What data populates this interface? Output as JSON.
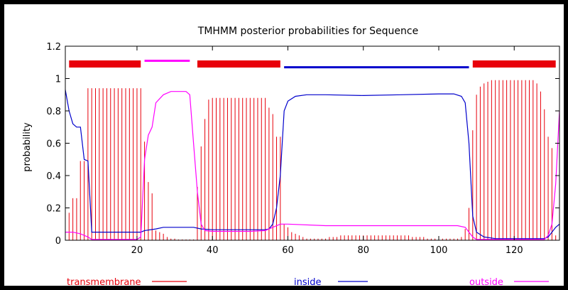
{
  "chart_data": {
    "type": "line",
    "title": "TMHMM posterior probabilities for Sequence",
    "xlabel": "",
    "ylabel": "probability",
    "xlim": [
      1,
      132
    ],
    "ylim": [
      0,
      1.2
    ],
    "x_ticks": [
      {
        "value": 20,
        "label": "20"
      },
      {
        "value": 40,
        "label": "40"
      },
      {
        "value": 60,
        "label": "60"
      },
      {
        "value": 80,
        "label": "80"
      },
      {
        "value": 100,
        "label": "100"
      },
      {
        "value": 120,
        "label": "120"
      }
    ],
    "y_ticks": [
      {
        "value": 0,
        "label": "0"
      },
      {
        "value": 0.2,
        "label": "0.2"
      },
      {
        "value": 0.4,
        "label": "0.4"
      },
      {
        "value": 0.6,
        "label": "0.6"
      },
      {
        "value": 0.8,
        "label": "0.8"
      },
      {
        "value": 1,
        "label": "1"
      },
      {
        "value": 1.2,
        "label": "1.2"
      }
    ],
    "topology": [
      {
        "type": "transmembrane",
        "start": 2,
        "end": 21,
        "level": 1.09
      },
      {
        "type": "outside",
        "start": 22,
        "end": 34,
        "level": 1.11
      },
      {
        "type": "transmembrane",
        "start": 36,
        "end": 58,
        "level": 1.09
      },
      {
        "type": "inside",
        "start": 59,
        "end": 108,
        "level": 1.07
      },
      {
        "type": "transmembrane",
        "start": 109,
        "end": 131,
        "level": 1.09
      }
    ],
    "series": [
      {
        "name": "transmembrane",
        "color": "#e8000b",
        "style": "impulses",
        "points": [
          [
            1,
            0.05
          ],
          [
            2,
            0.17
          ],
          [
            3,
            0.26
          ],
          [
            4,
            0.26
          ],
          [
            5,
            0.49
          ],
          [
            6,
            0.49
          ],
          [
            7,
            0.94
          ],
          [
            8,
            0.94
          ],
          [
            9,
            0.94
          ],
          [
            10,
            0.94
          ],
          [
            11,
            0.94
          ],
          [
            12,
            0.94
          ],
          [
            13,
            0.94
          ],
          [
            14,
            0.94
          ],
          [
            15,
            0.94
          ],
          [
            16,
            0.94
          ],
          [
            17,
            0.94
          ],
          [
            18,
            0.94
          ],
          [
            19,
            0.94
          ],
          [
            20,
            0.94
          ],
          [
            21,
            0.94
          ],
          [
            22,
            0.61
          ],
          [
            23,
            0.36
          ],
          [
            24,
            0.29
          ],
          [
            25,
            0.06
          ],
          [
            26,
            0.05
          ],
          [
            27,
            0.04
          ],
          [
            28,
            0.02
          ],
          [
            29,
            0.01
          ],
          [
            30,
            0.01
          ],
          [
            31,
            0.005
          ],
          [
            32,
            0.005
          ],
          [
            33,
            0.005
          ],
          [
            34,
            0.005
          ],
          [
            35,
            0.005
          ],
          [
            36,
            0.33
          ],
          [
            37,
            0.58
          ],
          [
            38,
            0.75
          ],
          [
            39,
            0.87
          ],
          [
            40,
            0.88
          ],
          [
            41,
            0.88
          ],
          [
            42,
            0.88
          ],
          [
            43,
            0.88
          ],
          [
            44,
            0.88
          ],
          [
            45,
            0.88
          ],
          [
            46,
            0.88
          ],
          [
            47,
            0.88
          ],
          [
            48,
            0.88
          ],
          [
            49,
            0.88
          ],
          [
            50,
            0.88
          ],
          [
            51,
            0.88
          ],
          [
            52,
            0.88
          ],
          [
            53,
            0.88
          ],
          [
            54,
            0.88
          ],
          [
            55,
            0.82
          ],
          [
            56,
            0.78
          ],
          [
            57,
            0.64
          ],
          [
            58,
            0.64
          ],
          [
            59,
            0.1
          ],
          [
            60,
            0.08
          ],
          [
            61,
            0.05
          ],
          [
            62,
            0.04
          ],
          [
            63,
            0.03
          ],
          [
            64,
            0.02
          ],
          [
            65,
            0.01
          ],
          [
            66,
            0.01
          ],
          [
            67,
            0.01
          ],
          [
            68,
            0.01
          ],
          [
            69,
            0.01
          ],
          [
            70,
            0.01
          ],
          [
            71,
            0.02
          ],
          [
            72,
            0.02
          ],
          [
            73,
            0.02
          ],
          [
            74,
            0.03
          ],
          [
            75,
            0.03
          ],
          [
            76,
            0.03
          ],
          [
            77,
            0.03
          ],
          [
            78,
            0.03
          ],
          [
            79,
            0.03
          ],
          [
            80,
            0.03
          ],
          [
            81,
            0.03
          ],
          [
            82,
            0.03
          ],
          [
            83,
            0.03
          ],
          [
            84,
            0.03
          ],
          [
            85,
            0.03
          ],
          [
            86,
            0.03
          ],
          [
            87,
            0.03
          ],
          [
            88,
            0.03
          ],
          [
            89,
            0.03
          ],
          [
            90,
            0.03
          ],
          [
            91,
            0.03
          ],
          [
            92,
            0.03
          ],
          [
            93,
            0.02
          ],
          [
            94,
            0.02
          ],
          [
            95,
            0.02
          ],
          [
            96,
            0.02
          ],
          [
            97,
            0.01
          ],
          [
            98,
            0.01
          ],
          [
            99,
            0.01
          ],
          [
            100,
            0.01
          ],
          [
            101,
            0.01
          ],
          [
            102,
            0.01
          ],
          [
            103,
            0.01
          ],
          [
            104,
            0.01
          ],
          [
            105,
            0.01
          ],
          [
            106,
            0.02
          ],
          [
            107,
            0.07
          ],
          [
            108,
            0.2
          ],
          [
            109,
            0.68
          ],
          [
            110,
            0.9
          ],
          [
            111,
            0.95
          ],
          [
            112,
            0.97
          ],
          [
            113,
            0.98
          ],
          [
            114,
            0.99
          ],
          [
            115,
            0.99
          ],
          [
            116,
            0.99
          ],
          [
            117,
            0.99
          ],
          [
            118,
            0.99
          ],
          [
            119,
            0.99
          ],
          [
            120,
            0.99
          ],
          [
            121,
            0.99
          ],
          [
            122,
            0.99
          ],
          [
            123,
            0.99
          ],
          [
            124,
            0.99
          ],
          [
            125,
            0.99
          ],
          [
            126,
            0.97
          ],
          [
            127,
            0.92
          ],
          [
            128,
            0.81
          ],
          [
            129,
            0.64
          ],
          [
            130,
            0.57
          ],
          [
            131,
            0.03
          ],
          [
            132,
            0.01
          ]
        ]
      },
      {
        "name": "inside",
        "color": "#0000cc",
        "style": "line",
        "points": [
          [
            1,
            0.93
          ],
          [
            2,
            0.8
          ],
          [
            3,
            0.72
          ],
          [
            4,
            0.7
          ],
          [
            5,
            0.7
          ],
          [
            6,
            0.5
          ],
          [
            7,
            0.49
          ],
          [
            8,
            0.05
          ],
          [
            9,
            0.05
          ],
          [
            10,
            0.05
          ],
          [
            20,
            0.05
          ],
          [
            21,
            0.05
          ],
          [
            22,
            0.06
          ],
          [
            25,
            0.07
          ],
          [
            27,
            0.08
          ],
          [
            30,
            0.08
          ],
          [
            35,
            0.08
          ],
          [
            37,
            0.07
          ],
          [
            40,
            0.065
          ],
          [
            45,
            0.065
          ],
          [
            50,
            0.065
          ],
          [
            54,
            0.065
          ],
          [
            55,
            0.07
          ],
          [
            56,
            0.1
          ],
          [
            57,
            0.2
          ],
          [
            58,
            0.4
          ],
          [
            59,
            0.8
          ],
          [
            60,
            0.86
          ],
          [
            62,
            0.89
          ],
          [
            65,
            0.9
          ],
          [
            70,
            0.9
          ],
          [
            80,
            0.895
          ],
          [
            90,
            0.9
          ],
          [
            100,
            0.905
          ],
          [
            104,
            0.905
          ],
          [
            106,
            0.89
          ],
          [
            107,
            0.85
          ],
          [
            108,
            0.6
          ],
          [
            109,
            0.15
          ],
          [
            110,
            0.05
          ],
          [
            112,
            0.02
          ],
          [
            115,
            0.01
          ],
          [
            120,
            0.01
          ],
          [
            125,
            0.01
          ],
          [
            128,
            0.01
          ],
          [
            129,
            0.02
          ],
          [
            130,
            0.05
          ],
          [
            131,
            0.08
          ],
          [
            132,
            0.1
          ]
        ]
      },
      {
        "name": "outside",
        "color": "#ff00ff",
        "style": "line",
        "points": [
          [
            1,
            0.05
          ],
          [
            3,
            0.05
          ],
          [
            5,
            0.04
          ],
          [
            7,
            0.02
          ],
          [
            8,
            0.005
          ],
          [
            10,
            0.005
          ],
          [
            20,
            0.005
          ],
          [
            21,
            0.02
          ],
          [
            22,
            0.5
          ],
          [
            23,
            0.65
          ],
          [
            24,
            0.7
          ],
          [
            25,
            0.85
          ],
          [
            27,
            0.9
          ],
          [
            29,
            0.92
          ],
          [
            33,
            0.92
          ],
          [
            34,
            0.9
          ],
          [
            35,
            0.6
          ],
          [
            36,
            0.3
          ],
          [
            37,
            0.1
          ],
          [
            38,
            0.06
          ],
          [
            40,
            0.055
          ],
          [
            50,
            0.055
          ],
          [
            54,
            0.06
          ],
          [
            56,
            0.08
          ],
          [
            58,
            0.1
          ],
          [
            60,
            0.1
          ],
          [
            70,
            0.09
          ],
          [
            80,
            0.09
          ],
          [
            90,
            0.09
          ],
          [
            100,
            0.09
          ],
          [
            105,
            0.09
          ],
          [
            107,
            0.08
          ],
          [
            108,
            0.05
          ],
          [
            109,
            0.02
          ],
          [
            110,
            0.005
          ],
          [
            120,
            0.005
          ],
          [
            128,
            0.005
          ],
          [
            129,
            0.03
          ],
          [
            130,
            0.1
          ],
          [
            131,
            0.35
          ],
          [
            132,
            0.8
          ]
        ]
      }
    ],
    "legend": [
      {
        "label": "transmembrane",
        "color": "#e8000b"
      },
      {
        "label": "inside",
        "color": "#0000cc"
      },
      {
        "label": "outside",
        "color": "#ff00ff"
      }
    ]
  }
}
